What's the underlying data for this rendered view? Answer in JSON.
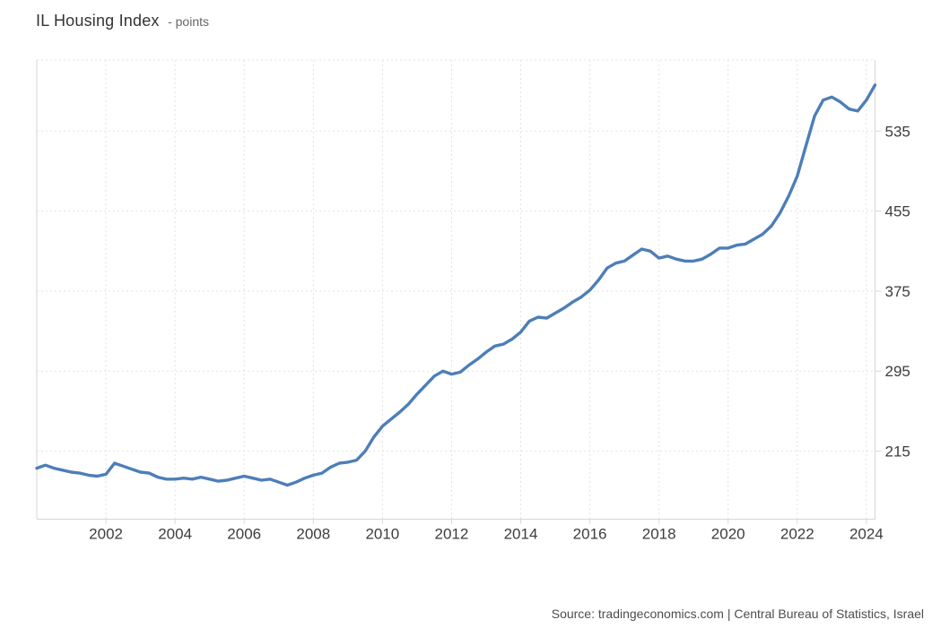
{
  "page": {
    "title": "IL Housing Index",
    "title_unit_suffix": "- points",
    "source_line": "Source: tradingeconomics.com | Central Bureau of Statistics, Israel"
  },
  "colors": {
    "background": "#ffffff",
    "line": "#4d7eb8",
    "grid_dotted": "#e3e3e3",
    "axis": "#d6d6d6",
    "tick_label": "#3d3d3d",
    "title": "#333333",
    "title_suffix": "#666666",
    "source_text": "#4d4d4d"
  },
  "chart_data": {
    "type": "line",
    "title": "IL Housing Index",
    "unit": "points",
    "xlabel": "",
    "ylabel": "",
    "x_start": 2000.0,
    "x_step": 0.25,
    "series": [
      {
        "name": "IL Housing Index",
        "values": [
          198,
          201,
          198,
          196,
          194,
          193,
          191,
          190,
          192,
          203,
          200,
          197,
          194,
          193,
          189,
          187,
          187,
          188,
          187,
          189,
          187,
          185,
          186,
          188,
          190,
          188,
          186,
          187,
          184,
          181,
          184,
          188,
          191,
          193,
          199,
          203,
          204,
          206,
          215,
          229,
          240,
          247,
          254,
          262,
          272,
          281,
          290,
          295,
          292,
          294,
          301,
          307,
          314,
          320,
          322,
          327,
          334,
          345,
          349,
          348,
          353,
          358,
          364,
          369,
          376,
          386,
          398,
          403,
          405,
          411,
          417,
          415,
          408,
          410,
          407,
          405,
          405,
          407,
          412,
          418,
          418,
          421,
          422,
          427,
          432,
          440,
          453,
          470,
          490,
          520,
          550,
          566,
          569,
          564,
          557,
          555,
          566,
          581
        ]
      }
    ],
    "x_range": [
      2000.0,
      2024.25
    ],
    "y_range": [
      147,
      606
    ],
    "x_ticks": [
      2002,
      2004,
      2006,
      2008,
      2010,
      2012,
      2014,
      2016,
      2018,
      2020,
      2022,
      2024
    ],
    "y_ticks": [
      215,
      295,
      375,
      455,
      535
    ],
    "y_tick_side": "right",
    "grid": "dotted",
    "legend_position": "none"
  }
}
